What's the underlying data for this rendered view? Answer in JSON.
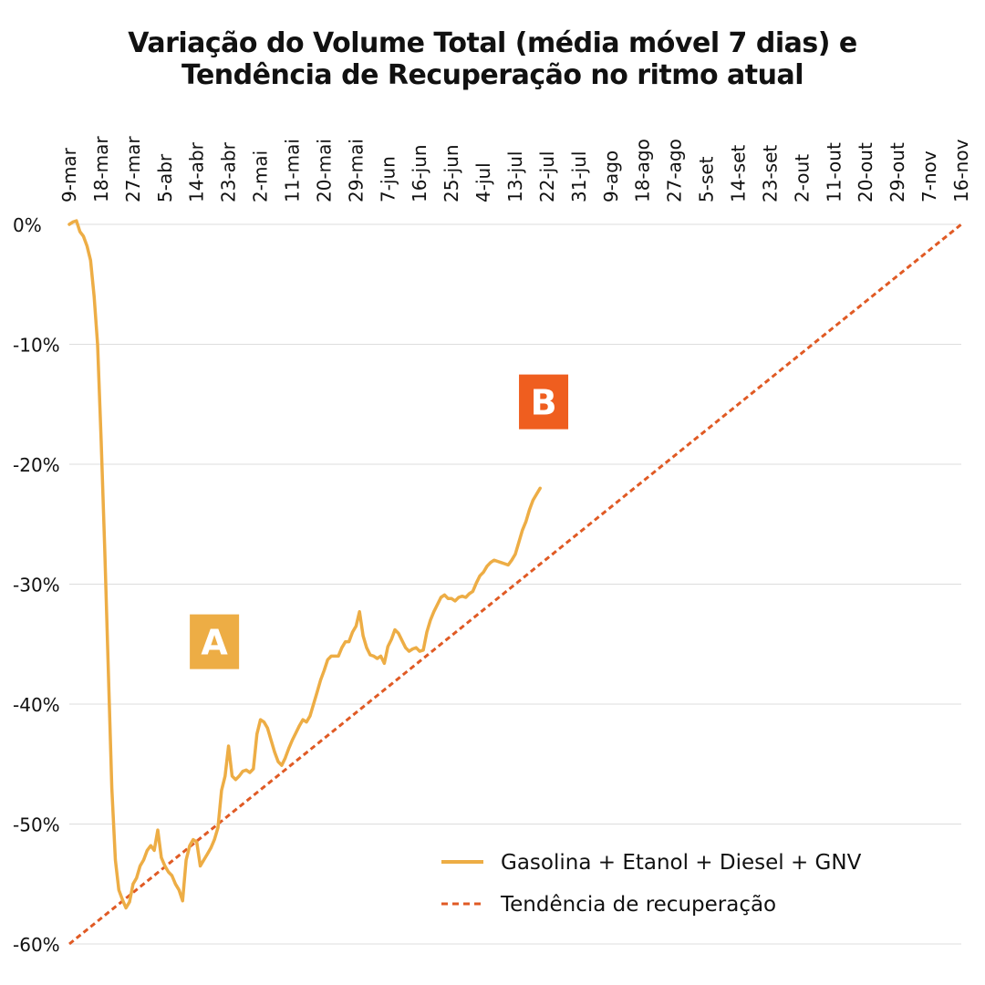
{
  "chart_data": {
    "type": "line",
    "title": [
      "Variação do Volume Total (média móvel 7 dias) e",
      "Tendência de Recuperação no ritmo atual"
    ],
    "x_ticks": [
      "9-mar",
      "18-mar",
      "27-mar",
      "5-abr",
      "14-abr",
      "23-abr",
      "2-mai",
      "11-mai",
      "20-mai",
      "29-mai",
      "7-jun",
      "16-jun",
      "25-jun",
      "4-jul",
      "13-jul",
      "22-jul",
      "31-jul",
      "9-ago",
      "18-ago",
      "27-ago",
      "5-set",
      "14-set",
      "23-set",
      "2-out",
      "11-out",
      "20-out",
      "29-out",
      "7-nov",
      "16-nov"
    ],
    "x_tick_step_days": 9,
    "y_ticks": [
      "0%",
      "-10%",
      "-20%",
      "-30%",
      "-40%",
      "-50%",
      "-60%"
    ],
    "y_tick_values": [
      0,
      -10,
      -20,
      -30,
      -40,
      -50,
      -60
    ],
    "xlim": [
      "9-mar",
      "16-nov"
    ],
    "ylim": [
      -60,
      0
    ],
    "grid": "horizontal",
    "legend_position": "bottom-right",
    "series": [
      {
        "name": "Gasolina + Etanol + Diesel + GNV",
        "color": "#EDAD45",
        "style": "solid",
        "points": [
          [
            0,
            0
          ],
          [
            1,
            0.2
          ],
          [
            2,
            0.3
          ],
          [
            3,
            -0.6
          ],
          [
            4,
            -1
          ],
          [
            5,
            -1.8
          ],
          [
            6,
            -3
          ],
          [
            7,
            -6
          ],
          [
            8,
            -10
          ],
          [
            9,
            -18
          ],
          [
            10,
            -27
          ],
          [
            11,
            -37
          ],
          [
            12,
            -47
          ],
          [
            13,
            -53
          ],
          [
            14,
            -55.5
          ],
          [
            15,
            -56.3
          ],
          [
            16,
            -57
          ],
          [
            17,
            -56.5
          ],
          [
            18,
            -55
          ],
          [
            19,
            -54.5
          ],
          [
            20,
            -53.5
          ],
          [
            21,
            -53
          ],
          [
            22,
            -52.2
          ],
          [
            23,
            -51.8
          ],
          [
            24,
            -52.2
          ],
          [
            25,
            -50.5
          ],
          [
            26,
            -52.8
          ],
          [
            27,
            -53.5
          ],
          [
            28,
            -54
          ],
          [
            29,
            -54.3
          ],
          [
            30,
            -55
          ],
          [
            31,
            -55.5
          ],
          [
            32,
            -56.4
          ],
          [
            33,
            -53
          ],
          [
            34,
            -51.8
          ],
          [
            35,
            -51.3
          ],
          [
            36,
            -51.5
          ],
          [
            37,
            -53.5
          ],
          [
            38,
            -53
          ],
          [
            39,
            -52.5
          ],
          [
            40,
            -52
          ],
          [
            41,
            -51.3
          ],
          [
            42,
            -50.3
          ],
          [
            43,
            -47.2
          ],
          [
            44,
            -46
          ],
          [
            45,
            -43.5
          ],
          [
            46,
            -46
          ],
          [
            47,
            -46.3
          ],
          [
            48,
            -46
          ],
          [
            49,
            -45.6
          ],
          [
            50,
            -45.5
          ],
          [
            51,
            -45.7
          ],
          [
            52,
            -45.4
          ],
          [
            53,
            -42.5
          ],
          [
            54,
            -41.3
          ],
          [
            55,
            -41.5
          ],
          [
            56,
            -42
          ],
          [
            57,
            -43
          ],
          [
            58,
            -44
          ],
          [
            59,
            -44.8
          ],
          [
            60,
            -45.1
          ],
          [
            61,
            -44.5
          ],
          [
            62,
            -43.7
          ],
          [
            63,
            -43
          ],
          [
            64,
            -42.4
          ],
          [
            65,
            -41.8
          ],
          [
            66,
            -41.3
          ],
          [
            67,
            -41.5
          ],
          [
            68,
            -41
          ],
          [
            69,
            -40
          ],
          [
            70,
            -39
          ],
          [
            71,
            -38
          ],
          [
            72,
            -37.2
          ],
          [
            73,
            -36.3
          ],
          [
            74,
            -36
          ],
          [
            75,
            -36
          ],
          [
            76,
            -36
          ],
          [
            77,
            -35.3
          ],
          [
            78,
            -34.8
          ],
          [
            79,
            -34.8
          ],
          [
            80,
            -34
          ],
          [
            81,
            -33.5
          ],
          [
            82,
            -32.3
          ],
          [
            83,
            -34.3
          ],
          [
            84,
            -35.3
          ],
          [
            85,
            -35.9
          ],
          [
            86,
            -36
          ],
          [
            87,
            -36.2
          ],
          [
            88,
            -36
          ],
          [
            89,
            -36.6
          ],
          [
            90,
            -35.2
          ],
          [
            91,
            -34.6
          ],
          [
            92,
            -33.8
          ],
          [
            93,
            -34.1
          ],
          [
            94,
            -34.7
          ],
          [
            95,
            -35.3
          ],
          [
            96,
            -35.6
          ],
          [
            97,
            -35.4
          ],
          [
            98,
            -35.3
          ],
          [
            99,
            -35.6
          ],
          [
            100,
            -35.5
          ],
          [
            101,
            -34
          ],
          [
            102,
            -33
          ],
          [
            103,
            -32.3
          ],
          [
            104,
            -31.7
          ],
          [
            105,
            -31.1
          ],
          [
            106,
            -30.9
          ],
          [
            107,
            -31.2
          ],
          [
            108,
            -31.2
          ],
          [
            109,
            -31.4
          ],
          [
            110,
            -31.1
          ],
          [
            111,
            -31
          ],
          [
            112,
            -31.1
          ],
          [
            113,
            -30.8
          ],
          [
            114,
            -30.6
          ],
          [
            115,
            -29.9
          ],
          [
            116,
            -29.3
          ],
          [
            117,
            -29
          ],
          [
            118,
            -28.5
          ],
          [
            119,
            -28.2
          ],
          [
            120,
            -28
          ],
          [
            121,
            -28.1
          ],
          [
            122,
            -28.2
          ],
          [
            123,
            -28.3
          ],
          [
            124,
            -28.4
          ],
          [
            125,
            -28
          ],
          [
            126,
            -27.5
          ],
          [
            127,
            -26.5
          ],
          [
            128,
            -25.5
          ],
          [
            129,
            -24.8
          ],
          [
            130,
            -23.8
          ],
          [
            131,
            -23
          ],
          [
            132,
            -22.5
          ],
          [
            133,
            -22
          ]
        ]
      },
      {
        "name": "Tendência de recuperação",
        "color": "#E05A24",
        "style": "dashed",
        "points": [
          [
            0,
            -60
          ],
          [
            252,
            0
          ]
        ]
      }
    ],
    "annotations": [
      {
        "label": "A",
        "color": "#EDAD45",
        "x": 41,
        "y": -34.8
      },
      {
        "label": "B",
        "color": "#EF5E1F",
        "x": 134,
        "y": -14.8
      }
    ]
  }
}
